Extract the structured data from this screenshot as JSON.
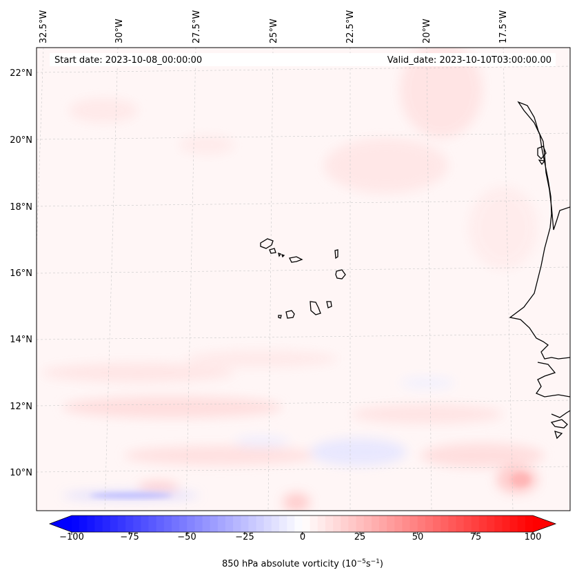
{
  "map": {
    "start_date": "Start date: 2023-10-08_00:00:00",
    "valid_date": "Valid_date: 2023-10-10T03:00:00.00",
    "lon_labels": [
      "32.5°W",
      "30°W",
      "27.5°W",
      "25°W",
      "22.5°W",
      "20°W",
      "17.5°W"
    ],
    "lat_labels": [
      "22°N",
      "20°N",
      "18°N",
      "16°N",
      "14°N",
      "12°N",
      "10°N"
    ],
    "features": [
      "Cape Verde islands",
      "West African coastline"
    ]
  },
  "colorbar": {
    "label_prefix": "850 hPa absolute vorticity (10",
    "exp1": "−5",
    "label_mid": "s",
    "exp2": "−1",
    "label_suffix": ")",
    "ticks": [
      "−100",
      "−75",
      "−50",
      "−25",
      "0",
      "25",
      "50",
      "75",
      "100"
    ],
    "range": [
      -100,
      100
    ],
    "levels": 60,
    "colors": {
      "min": "#0000ff",
      "mid": "#ffffff",
      "max": "#ff0000"
    }
  }
}
